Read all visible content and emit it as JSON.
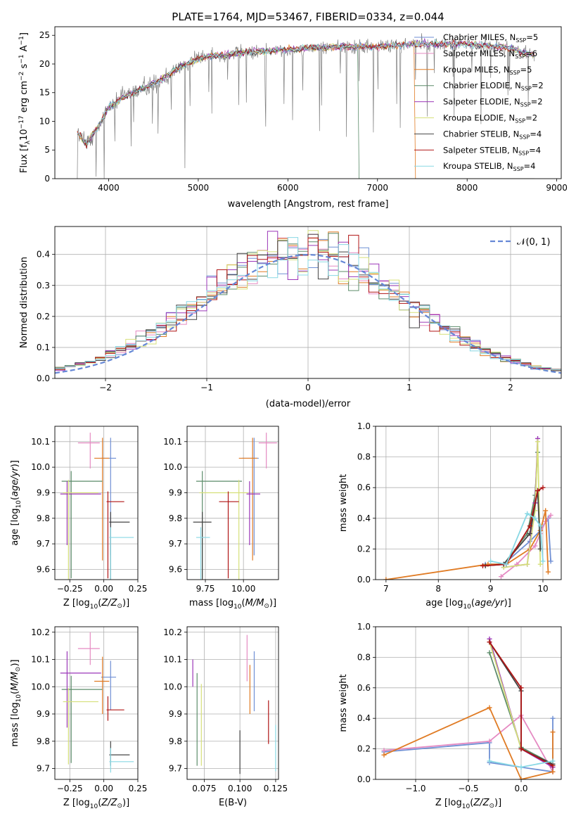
{
  "title": "PLATE=1764, MJD=53467, FIBERID=0334, z=0.044",
  "colors": {
    "Chabrier MILES": "#6f8fd4",
    "Salpeter MILES": "#e58ac2",
    "Kroupa MILES": "#e07b24",
    "Chabrier ELODIE": "#5c8c6a",
    "Salpeter ELODIE": "#9b37b8",
    "Kroupa ELODIE": "#d6e07a",
    "Chabrier STELIB": "#444444",
    "Salpeter STELIB": "#b01515",
    "Kroupa STELIB": "#88d8e4"
  },
  "chart_data": [
    {
      "name": "spectrum",
      "type": "line",
      "xlabel": "wavelength [Angstrom, rest frame]",
      "ylabel": "Flux [f_λ 10^-17 erg cm^-2 s^-1 A^-1]",
      "xlim": [
        3400,
        9050
      ],
      "ylim": [
        0,
        26.5
      ],
      "xticks": [
        4000,
        5000,
        6000,
        7000,
        8000,
        9000
      ],
      "yticks": [
        0,
        5,
        10,
        15,
        20,
        25
      ],
      "data_x_range": [
        3650,
        8750
      ],
      "legend_position": "upper-right",
      "legend": [
        {
          "name": "Chabrier MILES",
          "nssp": "5"
        },
        {
          "name": "Salpeter MILES",
          "nssp": "6"
        },
        {
          "name": "Kroupa MILES",
          "nssp": "5"
        },
        {
          "name": "Chabrier ELODIE",
          "nssp": "2"
        },
        {
          "name": "Salpeter ELODIE",
          "nssp": "2"
        },
        {
          "name": "Kroupa ELODIE",
          "nssp": "2"
        },
        {
          "name": "Chabrier STELIB",
          "nssp": "4"
        },
        {
          "name": "Salpeter STELIB",
          "nssp": "4"
        },
        {
          "name": "Kroupa STELIB",
          "nssp": "4"
        }
      ],
      "continuum": [
        [
          3650,
          8
        ],
        [
          3750,
          6
        ],
        [
          3900,
          9.5
        ],
        [
          4000,
          12.5
        ],
        [
          4200,
          14.5
        ],
        [
          4500,
          16.5
        ],
        [
          4800,
          19.5
        ],
        [
          5000,
          21
        ],
        [
          5500,
          22
        ],
        [
          6000,
          22.5
        ],
        [
          6500,
          23
        ],
        [
          7000,
          23
        ],
        [
          7500,
          23.5
        ],
        [
          8000,
          23.5
        ],
        [
          8400,
          23
        ],
        [
          8750,
          21.5
        ]
      ],
      "model_cutoffs": [
        {
          "model": "Kroupa MILES",
          "x": 7420
        },
        {
          "model": "Chabrier ELODIE",
          "x": 6790
        }
      ]
    },
    {
      "name": "residuals",
      "type": "step",
      "xlabel": "(data-model)/error",
      "ylabel": "Normed distribution",
      "xlim": [
        -2.5,
        2.5
      ],
      "ylim": [
        0,
        0.49
      ],
      "xticks": [
        -2,
        -1,
        0,
        1,
        2
      ],
      "yticks": [
        0.0,
        0.1,
        0.2,
        0.3,
        0.4
      ],
      "grid": true,
      "gaussian_label": "𝒩(0, 1)",
      "bin_width": 0.1
    },
    {
      "name": "age-Z",
      "type": "errorbar",
      "xlabel": "Z [log10(Z/Z⊙)]",
      "ylabel": "age [log10(age/yr)]",
      "xlim": [
        -0.36,
        0.25
      ],
      "ylim": [
        9.56,
        10.16
      ],
      "xticks": [
        -0.25,
        0.0,
        0.25
      ],
      "yticks": [
        9.6,
        9.7,
        9.8,
        9.9,
        10.0,
        10.1
      ],
      "grid": true,
      "points": [
        {
          "model": "Chabrier MILES",
          "x": 0.05,
          "xerr": [
            0.07,
            0.04
          ],
          "y": 10.035,
          "yerr": [
            0.38,
            0.08
          ]
        },
        {
          "model": "Salpeter MILES",
          "x": -0.1,
          "xerr": [
            0.09,
            0.07
          ],
          "y": 10.095,
          "yerr": [
            0.1,
            0.04
          ]
        },
        {
          "model": "Kroupa MILES",
          "x": -0.01,
          "xerr": [
            0.06,
            0.05
          ],
          "y": 10.035,
          "yerr": [
            0.4,
            0.08
          ]
        },
        {
          "model": "Chabrier ELODIE",
          "x": -0.24,
          "xerr": [
            0.07,
            0.23
          ],
          "y": 9.945,
          "yerr": [
            0.38,
            0.04
          ]
        },
        {
          "model": "Salpeter ELODIE",
          "x": -0.27,
          "xerr": [
            0.05,
            0.25
          ],
          "y": 9.895,
          "yerr": [
            0.2,
            0.05
          ]
        },
        {
          "model": "Kroupa ELODIE",
          "x": -0.26,
          "xerr": [
            0.04,
            0.22
          ],
          "y": 9.9,
          "yerr": [
            0.35,
            0.05
          ]
        },
        {
          "model": "Chabrier STELIB",
          "x": 0.05,
          "xerr": [
            0.01,
            0.14
          ],
          "y": 9.785,
          "yerr": [
            0.3,
            0.04
          ]
        },
        {
          "model": "Salpeter STELIB",
          "x": 0.03,
          "xerr": [
            0.01,
            0.12
          ],
          "y": 9.865,
          "yerr": [
            0.3,
            0.04
          ]
        },
        {
          "model": "Kroupa STELIB",
          "x": 0.05,
          "xerr": [
            0.01,
            0.17
          ],
          "y": 9.725,
          "yerr": [
            0.3,
            0.04
          ]
        }
      ]
    },
    {
      "name": "age-mass",
      "type": "errorbar",
      "xlabel": "mass [log10(M/M⊙)]",
      "ylabel": "",
      "xlim": [
        9.63,
        10.23
      ],
      "ylim": [
        9.56,
        10.16
      ],
      "xticks": [
        9.75,
        10.0
      ],
      "yticks": [
        9.6,
        9.7,
        9.8,
        9.9,
        10.0,
        10.1
      ],
      "grid": true,
      "points": [
        {
          "model": "Chabrier MILES",
          "x": 10.07,
          "xerr": [
            0.08,
            0.03
          ],
          "y": 10.035,
          "yerr": [
            0.38,
            0.08
          ]
        },
        {
          "model": "Salpeter MILES",
          "x": 10.15,
          "xerr": [
            0.05,
            0.07
          ],
          "y": 10.095,
          "yerr": [
            0.1,
            0.04
          ]
        },
        {
          "model": "Kroupa MILES",
          "x": 10.06,
          "xerr": [
            0.09,
            0.03
          ],
          "y": 10.035,
          "yerr": [
            0.4,
            0.08
          ]
        },
        {
          "model": "Chabrier ELODIE",
          "x": 9.73,
          "xerr": [
            0.04,
            0.26
          ],
          "y": 9.945,
          "yerr": [
            0.38,
            0.04
          ]
        },
        {
          "model": "Salpeter ELODIE",
          "x": 10.04,
          "xerr": [
            0.02,
            0.07
          ],
          "y": 9.895,
          "yerr": [
            0.2,
            0.05
          ]
        },
        {
          "model": "Kroupa ELODIE",
          "x": 9.97,
          "xerr": [
            0.26,
            0.06
          ],
          "y": 9.9,
          "yerr": [
            0.35,
            0.05
          ]
        },
        {
          "model": "Chabrier STELIB",
          "x": 9.73,
          "xerr": [
            0.06,
            0.06
          ],
          "y": 9.785,
          "yerr": [
            0.3,
            0.04
          ]
        },
        {
          "model": "Salpeter STELIB",
          "x": 9.9,
          "xerr": [
            0.06,
            0.07
          ],
          "y": 9.865,
          "yerr": [
            0.3,
            0.04
          ]
        },
        {
          "model": "Kroupa STELIB",
          "x": 9.72,
          "xerr": [
            0.03,
            0.06
          ],
          "y": 9.725,
          "yerr": [
            0.3,
            0.04
          ]
        }
      ]
    },
    {
      "name": "weight-age",
      "type": "line",
      "xlabel": "age [log10(age/yr)]",
      "ylabel": "mass weight",
      "xlim": [
        6.8,
        10.35
      ],
      "ylim": [
        0,
        1
      ],
      "xticks": [
        7,
        8,
        9,
        10
      ],
      "yticks": [
        0.0,
        0.2,
        0.4,
        0.6,
        0.8,
        1.0
      ],
      "grid": true,
      "series": [
        {
          "model": "Chabrier MILES",
          "x": [
            8.9,
            9.25,
            9.75,
            9.95,
            10.1,
            10.15
          ],
          "y": [
            0.1,
            0.1,
            0.25,
            0.32,
            0.4,
            0.12
          ]
        },
        {
          "model": "Salpeter MILES",
          "x": [
            9.2,
            9.5,
            9.85,
            9.95,
            10.05,
            10.15
          ],
          "y": [
            0.02,
            0.1,
            0.22,
            0.3,
            0.38,
            0.42
          ]
        },
        {
          "model": "Kroupa MILES",
          "x": [
            7.0,
            8.95,
            9.3,
            9.75,
            9.95,
            10.05,
            10.1
          ],
          "y": [
            0.0,
            0.1,
            0.1,
            0.2,
            0.32,
            0.45,
            0.05
          ]
        },
        {
          "model": "Chabrier ELODIE",
          "x": [
            9.25,
            9.7,
            9.85,
            9.9
          ],
          "y": [
            0.1,
            0.3,
            0.55,
            0.83
          ]
        },
        {
          "model": "Salpeter ELODIE",
          "x": [
            9.25,
            9.7,
            9.85,
            9.9
          ],
          "y": [
            0.08,
            0.1,
            0.5,
            0.92
          ]
        },
        {
          "model": "Kroupa ELODIE",
          "x": [
            9.25,
            9.7,
            9.85,
            9.9,
            9.95
          ],
          "y": [
            0.08,
            0.1,
            0.45,
            0.9,
            0.1
          ]
        },
        {
          "model": "Chabrier STELIB",
          "x": [
            8.9,
            9.25,
            9.75,
            9.9,
            9.95
          ],
          "y": [
            0.09,
            0.1,
            0.3,
            0.58,
            0.2
          ]
        },
        {
          "model": "Salpeter STELIB",
          "x": [
            8.85,
            9.3,
            9.75,
            9.9,
            10.0
          ],
          "y": [
            0.09,
            0.1,
            0.35,
            0.58,
            0.6
          ]
        },
        {
          "model": "Kroupa STELIB",
          "x": [
            9.0,
            9.3,
            9.7,
            9.85,
            9.95,
            10.0
          ],
          "y": [
            0.12,
            0.1,
            0.43,
            0.4,
            0.35,
            0.12
          ]
        }
      ]
    },
    {
      "name": "mass-Z",
      "type": "errorbar",
      "xlabel": "Z [log10(Z/Z⊙)]",
      "ylabel": "mass [log10(M/M⊙)]",
      "xlim": [
        -0.36,
        0.25
      ],
      "ylim": [
        9.66,
        10.22
      ],
      "xticks": [
        -0.25,
        0.0,
        0.25
      ],
      "yticks": [
        9.7,
        9.8,
        9.9,
        10.0,
        10.1,
        10.2
      ],
      "grid": true,
      "points": [
        {
          "model": "Chabrier MILES",
          "x": 0.05,
          "xerr": [
            0.07,
            0.04
          ],
          "y": 10.035,
          "yerr": [
            0.12,
            0.06
          ]
        },
        {
          "model": "Salpeter MILES",
          "x": -0.1,
          "xerr": [
            0.09,
            0.07
          ],
          "y": 10.14,
          "yerr": [
            0.06,
            0.06
          ]
        },
        {
          "model": "Kroupa MILES",
          "x": -0.01,
          "xerr": [
            0.06,
            0.05
          ],
          "y": 10.02,
          "yerr": [
            0.12,
            0.09
          ]
        },
        {
          "model": "Chabrier ELODIE",
          "x": -0.24,
          "xerr": [
            0.07,
            0.23
          ],
          "y": 9.99,
          "yerr": [
            0.27,
            0.05
          ]
        },
        {
          "model": "Salpeter ELODIE",
          "x": -0.27,
          "xerr": [
            0.05,
            0.25
          ],
          "y": 10.05,
          "yerr": [
            0.2,
            0.08
          ]
        },
        {
          "model": "Kroupa ELODIE",
          "x": -0.26,
          "xerr": [
            0.04,
            0.22
          ],
          "y": 9.945,
          "yerr": [
            0.23,
            0.05
          ]
        },
        {
          "model": "Chabrier STELIB",
          "x": 0.05,
          "xerr": [
            0.01,
            0.14
          ],
          "y": 9.75,
          "yerr": [
            0.04,
            0.05
          ]
        },
        {
          "model": "Salpeter STELIB",
          "x": 0.03,
          "xerr": [
            0.01,
            0.12
          ],
          "y": 9.915,
          "yerr": [
            0.04,
            0.05
          ]
        },
        {
          "model": "Kroupa STELIB",
          "x": 0.05,
          "xerr": [
            0.01,
            0.17
          ],
          "y": 9.725,
          "yerr": [
            0.04,
            0.05
          ]
        }
      ]
    },
    {
      "name": "mass-EBV",
      "type": "errorbar",
      "xlabel": "E(B-V)",
      "ylabel": "",
      "xlim": [
        0.063,
        0.127
      ],
      "ylim": [
        9.66,
        10.22
      ],
      "xticks": [
        0.075,
        0.1,
        0.125
      ],
      "yticks": [
        9.7,
        9.8,
        9.9,
        10.0,
        10.1,
        10.2
      ],
      "grid": true,
      "points": [
        {
          "model": "Chabrier MILES",
          "x": 0.11,
          "y": 10.02,
          "yerr": [
            0.11,
            0.11
          ]
        },
        {
          "model": "Salpeter MILES",
          "x": 0.105,
          "y": 10.09,
          "yerr": [
            0.07,
            0.1
          ]
        },
        {
          "model": "Kroupa MILES",
          "x": 0.107,
          "y": 9.99,
          "yerr": [
            0.09,
            0.09
          ]
        },
        {
          "model": "Chabrier ELODIE",
          "x": 0.07,
          "y": 9.88,
          "yerr": [
            0.17,
            0.17
          ]
        },
        {
          "model": "Salpeter ELODIE",
          "x": 0.067,
          "y": 10.05,
          "yerr": [
            0.05,
            0.05
          ]
        },
        {
          "model": "Kroupa ELODIE",
          "x": 0.073,
          "y": 9.86,
          "yerr": [
            0.15,
            0.15
          ]
        },
        {
          "model": "Chabrier STELIB",
          "x": 0.1,
          "y": 9.76,
          "yerr": [
            0.08,
            0.08
          ]
        },
        {
          "model": "Salpeter STELIB",
          "x": 0.12,
          "y": 9.87,
          "yerr": [
            0.08,
            0.08
          ]
        },
        {
          "model": "Kroupa STELIB",
          "x": 0.125,
          "y": 9.77,
          "yerr": [
            0.08,
            0.09
          ]
        }
      ]
    },
    {
      "name": "weight-Z",
      "type": "line",
      "xlabel": "Z [log10(Z/Z⊙)]",
      "ylabel": "mass weight",
      "xlim": [
        -1.38,
        0.38
      ],
      "ylim": [
        0,
        1
      ],
      "xticks": [
        -1.0,
        -0.5,
        0.0
      ],
      "yticks": [
        0.0,
        0.2,
        0.4,
        0.6,
        0.8,
        1.0
      ],
      "grid": true,
      "series": [
        {
          "model": "Chabrier MILES",
          "x": [
            -1.3,
            -0.3,
            -0.3,
            0.3,
            0.3,
            0.3
          ],
          "y": [
            0.18,
            0.24,
            0.11,
            0.05,
            0.4,
            0.1
          ]
        },
        {
          "model": "Salpeter MILES",
          "x": [
            -1.3,
            -0.3,
            0.0,
            0.3,
            0.3
          ],
          "y": [
            0.19,
            0.25,
            0.42,
            0.05,
            0.1
          ]
        },
        {
          "model": "Kroupa MILES",
          "x": [
            -1.3,
            -0.3,
            0.0,
            0.3,
            0.3
          ],
          "y": [
            0.16,
            0.47,
            0.0,
            0.05,
            0.31
          ]
        },
        {
          "model": "Chabrier ELODIE",
          "x": [
            -0.3,
            0.0,
            0.3
          ],
          "y": [
            0.83,
            0.21,
            0.1
          ]
        },
        {
          "model": "Salpeter ELODIE",
          "x": [
            -0.3,
            0.0,
            0.3
          ],
          "y": [
            0.92,
            0.2,
            0.08
          ]
        },
        {
          "model": "Kroupa ELODIE",
          "x": [
            -0.3,
            0.0,
            0.3
          ],
          "y": [
            0.9,
            0.2,
            0.1
          ]
        },
        {
          "model": "Chabrier STELIB",
          "x": [
            -0.3,
            0.0,
            0.0,
            0.3
          ],
          "y": [
            0.9,
            0.58,
            0.2,
            0.1
          ]
        },
        {
          "model": "Salpeter STELIB",
          "x": [
            -0.3,
            0.0,
            0.0,
            0.3
          ],
          "y": [
            0.9,
            0.6,
            0.2,
            0.09
          ]
        },
        {
          "model": "Kroupa STELIB",
          "x": [
            -0.3,
            0.0,
            0.3
          ],
          "y": [
            0.12,
            0.08,
            0.12
          ]
        }
      ]
    }
  ]
}
